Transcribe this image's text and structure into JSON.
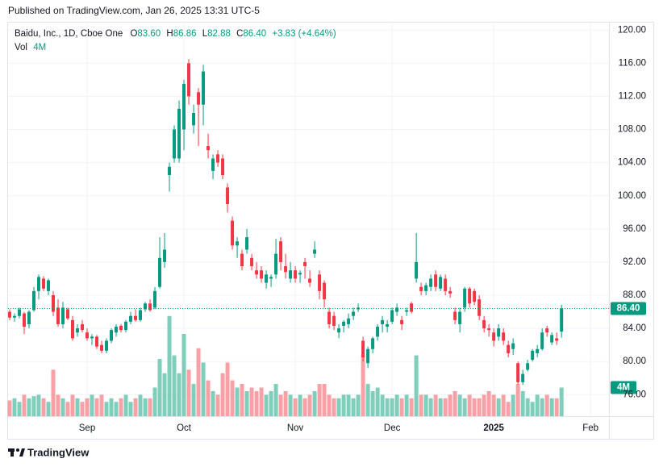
{
  "header": {
    "published": "Published on TradingView.com, Jan 26, 2025 13:31 UTC-5"
  },
  "footer": {
    "brand": "TradingView"
  },
  "chart_data": {
    "type": "candlestick",
    "legend": {
      "symbol": "Baidu, Inc., 1D, Cboe One",
      "items": [
        {
          "label": "O",
          "value": "83.60"
        },
        {
          "label": "H",
          "value": "86.86"
        },
        {
          "label": "L",
          "value": "82.88"
        },
        {
          "label": "C",
          "value": "86.40"
        }
      ],
      "change": "+3.83 (+4.64%)",
      "volume_label": "Vol"
    },
    "up_color": "#089981",
    "down_color": "#f23645",
    "volume_up_color": "#7fcdbb",
    "volume_down_color": "#f7a1a7",
    "open": [
      86,
      85.3,
      85.5,
      85.8,
      84.5,
      86.2,
      88.5,
      90,
      88.5,
      88,
      86.5,
      84.5,
      86.3,
      85,
      83.5,
      84.5,
      83.5,
      82.8,
      83,
      82,
      81.3,
      82.5,
      83.5,
      84.3,
      83.8,
      84.8,
      85.5,
      85,
      86.3,
      87,
      86.5,
      89,
      92,
      102.5,
      104.5,
      104.5,
      108,
      116,
      108.5,
      112.5,
      111,
      106,
      103,
      105,
      104.5,
      101,
      97,
      94,
      93,
      93.5,
      92.5,
      91,
      91,
      89.5,
      90,
      90.5,
      94.5,
      91.5,
      90,
      91,
      90.5,
      92,
      90,
      93,
      90.5,
      89.5,
      86,
      85.5,
      83.5,
      84.3,
      84.5,
      85.5,
      86.3,
      82.5,
      79.8,
      81.5,
      83,
      84.5,
      84.2,
      84.8,
      86,
      85,
      86,
      87,
      90,
      89,
      88.5,
      89,
      90.5,
      88.8,
      90,
      88.5,
      86,
      84.5,
      86.5,
      88.8,
      88.5,
      87.5,
      85,
      84,
      83.5,
      83,
      83.5,
      82,
      81.5,
      79.8,
      77.5,
      79,
      80.2,
      81,
      81.5,
      84,
      82.3,
      82.8,
      83.6
    ],
    "high": [
      86.3,
      85.8,
      86.5,
      86,
      86.2,
      89,
      90.5,
      90.3,
      90,
      88.5,
      87.5,
      87.2,
      86.5,
      85.5,
      84.5,
      85,
      84,
      83.3,
      83.2,
      82.5,
      82.8,
      84,
      84.5,
      84.5,
      85,
      86,
      86.3,
      86.5,
      87.2,
      87.5,
      89,
      95,
      95.5,
      104,
      108.5,
      111.5,
      114,
      116.5,
      111,
      113,
      115.8,
      107.5,
      105,
      105.5,
      105,
      101.5,
      97.5,
      95,
      93.5,
      96,
      93,
      92,
      91.5,
      91,
      90.5,
      94.8,
      95,
      93,
      92,
      91.5,
      91,
      92.5,
      91,
      94.5,
      91,
      89.8,
      86.5,
      86,
      84.5,
      85,
      85.8,
      86.5,
      87,
      83,
      81.8,
      83,
      84.5,
      85.5,
      85,
      86.5,
      87,
      85.5,
      86.5,
      87.2,
      95.5,
      89.5,
      89.5,
      90.5,
      91,
      90.5,
      90.5,
      89,
      86.5,
      86.5,
      89,
      89,
      88.8,
      88,
      85.5,
      84.5,
      84,
      84.5,
      84,
      82.5,
      82.8,
      80,
      79,
      80.2,
      81.5,
      82,
      84,
      84.3,
      83.5,
      83.5,
      86.86
    ],
    "low": [
      85,
      84.8,
      85.2,
      83.3,
      84,
      86,
      87.5,
      88.5,
      88,
      85.5,
      84.2,
      84,
      85,
      82.5,
      83,
      83.5,
      82.5,
      82,
      81.5,
      81,
      81,
      82.2,
      83,
      83.5,
      83.5,
      84.5,
      84.8,
      84.8,
      86,
      86,
      86.3,
      88.8,
      91.3,
      100.5,
      104,
      104,
      105.5,
      111,
      107.5,
      106,
      108.5,
      104.5,
      102,
      103.5,
      102,
      98,
      93.5,
      92.5,
      91,
      93,
      91,
      90,
      89.5,
      88.8,
      89,
      90,
      91,
      90,
      89.5,
      89.5,
      89.5,
      90,
      89,
      92.5,
      87.5,
      86.5,
      84,
      83.8,
      82.8,
      83.5,
      84,
      85,
      86,
      80,
      79.2,
      81,
      82.5,
      83.5,
      83.5,
      84.5,
      85.5,
      83.8,
      85.5,
      85.8,
      89.5,
      88,
      88,
      88.5,
      88.5,
      88.5,
      88,
      87.7,
      84.5,
      83.5,
      86,
      86.5,
      86.8,
      85,
      83.5,
      83,
      81.8,
      82.5,
      82,
      80.5,
      80.8,
      77.2,
      77.2,
      78.8,
      80,
      80.5,
      81.3,
      83,
      82,
      82,
      82.88
    ],
    "close": [
      85.3,
      85.5,
      86.3,
      84.2,
      86,
      88.5,
      90.2,
      88.8,
      89.8,
      86,
      84.5,
      86.5,
      85.2,
      82.8,
      84,
      83.8,
      82.8,
      83,
      81.8,
      81.3,
      82.5,
      83.8,
      84.2,
      83.8,
      84.8,
      85.5,
      85,
      86.2,
      87,
      86.2,
      88.5,
      92.5,
      93.5,
      103.5,
      108,
      110.5,
      113.5,
      112,
      110,
      111,
      115,
      105.5,
      104.5,
      104,
      102.5,
      99,
      94,
      94.5,
      91.5,
      95,
      91.5,
      90.5,
      90,
      90.5,
      90.2,
      93,
      92,
      90.8,
      91,
      90,
      90.7,
      91.5,
      89.5,
      93.5,
      88.5,
      87.5,
      84.5,
      84.3,
      84,
      84.8,
      85.2,
      86,
      86.5,
      80.5,
      81.5,
      82.8,
      84.2,
      85,
      84.5,
      86.2,
      86.5,
      84.5,
      86.2,
      86,
      92,
      88.5,
      89.2,
      90,
      89,
      90.2,
      88.5,
      88.2,
      85,
      86,
      88.8,
      87,
      87.2,
      85.5,
      84,
      83.8,
      82.5,
      84,
      82.5,
      81,
      82.2,
      77.5,
      78.5,
      79.8,
      81.3,
      81.5,
      83.5,
      83.5,
      83.2,
      82.5,
      86.4
    ],
    "volume": [
      2.2,
      2.5,
      2,
      3,
      2.5,
      2.8,
      3,
      2.5,
      2,
      6.5,
      3,
      2.5,
      2,
      3,
      2.5,
      2,
      2.5,
      3,
      2.5,
      3,
      2,
      2.5,
      2,
      2.5,
      3,
      2,
      2.5,
      3,
      2.5,
      2.5,
      4,
      8,
      6,
      14,
      8.5,
      6,
      11.5,
      6.5,
      4.5,
      9.5,
      7.5,
      5,
      3.5,
      3,
      6,
      7.5,
      5,
      4,
      4.5,
      3.5,
      4,
      3.5,
      4,
      3,
      3.5,
      4.5,
      3,
      3.5,
      3,
      2.5,
      3,
      2.5,
      3,
      3.5,
      4.5,
      4.5,
      3,
      2.5,
      2.5,
      3,
      3,
      2.5,
      3,
      8.5,
      4.5,
      3.5,
      4,
      3,
      2.5,
      2.5,
      3,
      2.5,
      3,
      2.5,
      8.5,
      3,
      3,
      2.5,
      3,
      2.5,
      2.5,
      3,
      3.5,
      3,
      2.5,
      3,
      2.5,
      2.5,
      3,
      3.5,
      3,
      2.5,
      3,
      2,
      3,
      4.5,
      3.5,
      2.5,
      2,
      3,
      2.5,
      3,
      2.5,
      2.5,
      4
    ],
    "volume_ylim": [
      0,
      55
    ],
    "last_volume_label": "4M",
    "last_price": 86.4,
    "last_price_label": "86.40",
    "xlim": [
      -0.33,
      123.8
    ],
    "xticks": [
      {
        "value": 16,
        "label": "Sep"
      },
      {
        "value": 36,
        "label": "Oct"
      },
      {
        "value": 59,
        "label": "Nov"
      },
      {
        "value": 79,
        "label": "Dec"
      },
      {
        "value": 100,
        "label": "2025"
      },
      {
        "value": 120,
        "label": "Feb"
      }
    ],
    "ylim": [
      73.4,
      120.9
    ],
    "yticks": [
      {
        "value": 76,
        "label": "76.00"
      },
      {
        "value": 80,
        "label": "80.00"
      },
      {
        "value": 84,
        "label": "84.00"
      },
      {
        "value": 88,
        "label": "88.00"
      },
      {
        "value": 92,
        "label": "92.00"
      },
      {
        "value": 96,
        "label": "96.00"
      },
      {
        "value": 100,
        "label": "100.00"
      },
      {
        "value": 104,
        "label": "104.00"
      },
      {
        "value": 108,
        "label": "108.00"
      },
      {
        "value": 112,
        "label": "112.00"
      },
      {
        "value": 116,
        "label": "116.00"
      },
      {
        "value": 120,
        "label": "120.00"
      }
    ],
    "grid": true
  }
}
